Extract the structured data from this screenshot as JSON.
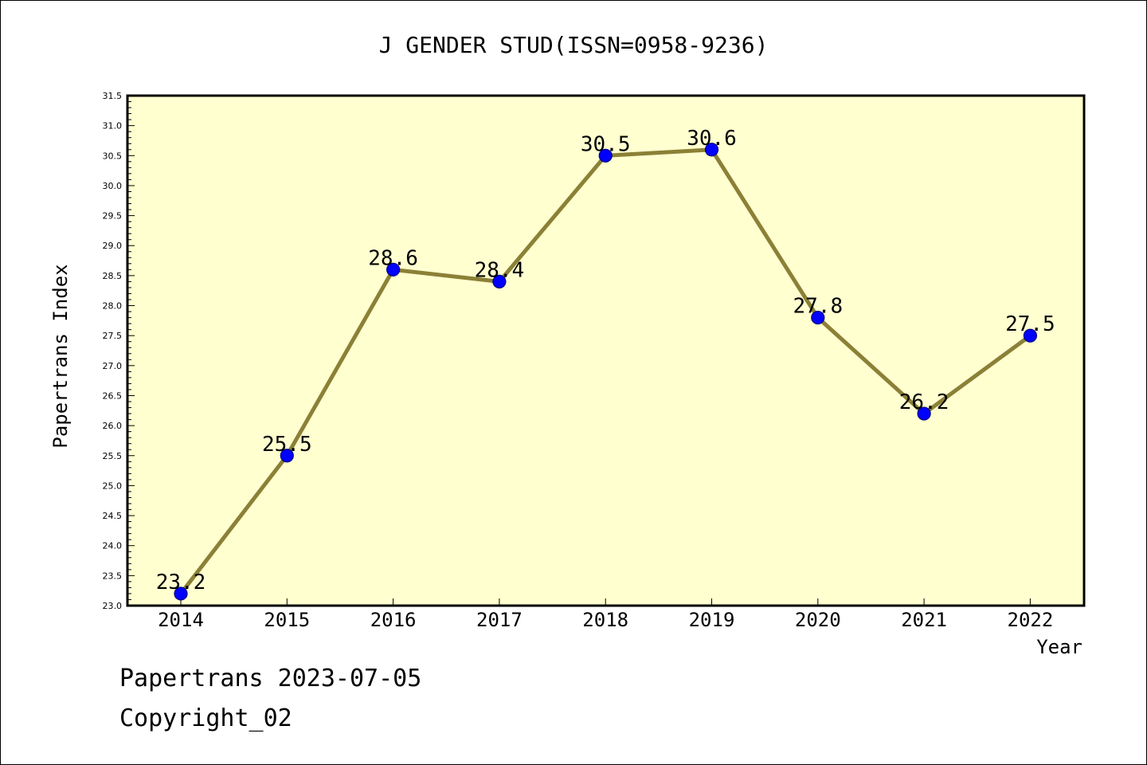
{
  "chart_data": {
    "type": "line",
    "title": "J GENDER STUD(ISSN=0958-9236)",
    "xlabel": "Year",
    "ylabel": "Papertrans Index",
    "categories": [
      "2014",
      "2015",
      "2016",
      "2017",
      "2018",
      "2019",
      "2020",
      "2021",
      "2022"
    ],
    "series": [
      {
        "values": [
          23.2,
          25.5,
          28.6,
          28.4,
          30.5,
          30.6,
          27.8,
          26.2,
          27.5
        ],
        "labels": [
          "23.2",
          "25.5",
          "28.6",
          "28.4",
          "30.5",
          "30.6",
          "27.8",
          "26.2",
          "27.5"
        ]
      }
    ],
    "ylim": [
      23.0,
      31.5
    ],
    "yticks": [
      "23.0",
      "23.5",
      "24.0",
      "24.5",
      "25.0",
      "25.5",
      "26.0",
      "26.5",
      "27.0",
      "27.5",
      "28.0",
      "28.5",
      "29.0",
      "29.5",
      "30.0",
      "30.5",
      "31.0",
      "31.5"
    ],
    "grid": false,
    "colors": {
      "plot_background": "#ffffd0",
      "line": "#8b8036",
      "marker": "#0000ff",
      "marker_edge": "#000080"
    }
  },
  "footer": {
    "line1": "Papertrans 2023-07-05",
    "line2": "Copyright_02"
  }
}
